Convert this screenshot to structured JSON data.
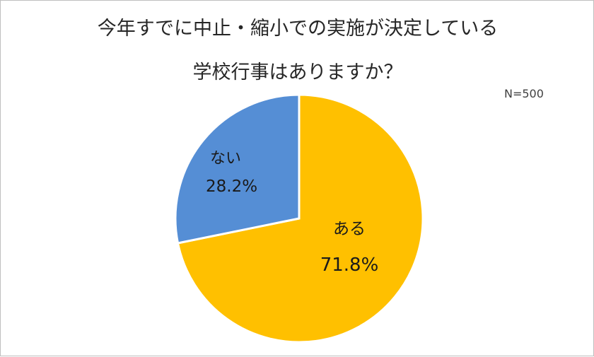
{
  "chart_data": {
    "type": "pie",
    "title": "今年すでに中止・縮小での実施が決定している",
    "subtitle": "学校行事はありますか？",
    "note": "N=500",
    "slices": [
      {
        "label": "ある",
        "value": 71.8,
        "value_label": "71.8%",
        "color": "#FFC000"
      },
      {
        "label": "ない",
        "value": 28.2,
        "value_label": "28.2%",
        "color": "#558ED5"
      }
    ]
  }
}
